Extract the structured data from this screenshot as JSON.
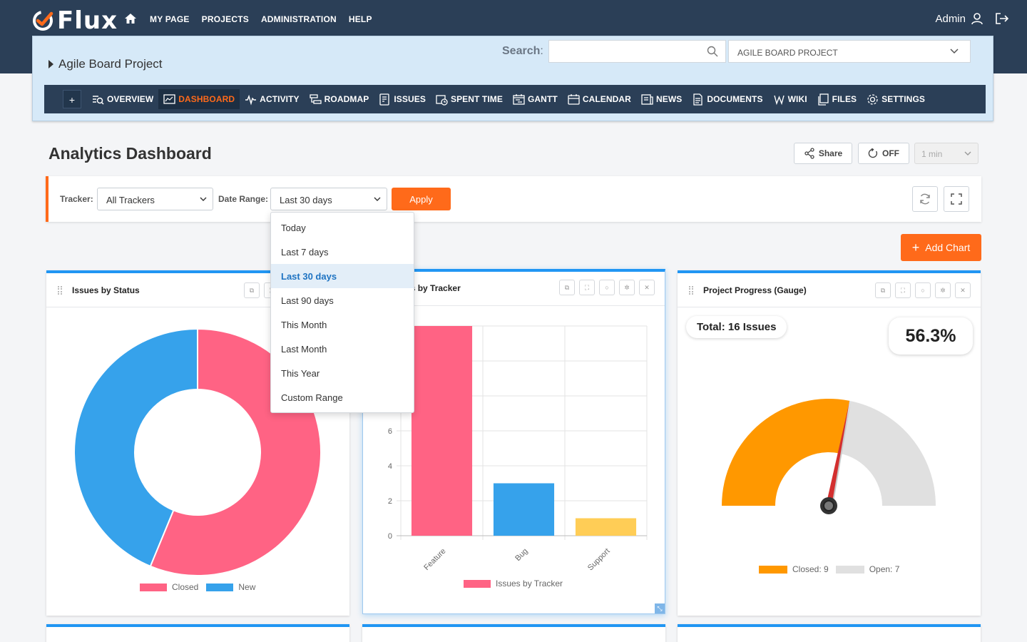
{
  "app": {
    "name": "Flux",
    "user": "Admin"
  },
  "mainnav": [
    "MY PAGE",
    "PROJECTS",
    "ADMINISTRATION",
    "HELP"
  ],
  "project": {
    "title": "Agile Board Project",
    "search_label": "Search",
    "search_placeholder": "",
    "selected": "AGILE BOARD PROJECT"
  },
  "subnav": {
    "plus": "+",
    "items": [
      {
        "label": "OVERVIEW",
        "icon": "overview-icon"
      },
      {
        "label": "DASHBOARD",
        "icon": "dashboard-icon",
        "active": true
      },
      {
        "label": "ACTIVITY",
        "icon": "activity-icon"
      },
      {
        "label": "ROADMAP",
        "icon": "roadmap-icon"
      },
      {
        "label": "ISSUES",
        "icon": "issues-icon"
      },
      {
        "label": "SPENT TIME",
        "icon": "spent-time-icon"
      },
      {
        "label": "GANTT",
        "icon": "gantt-icon"
      },
      {
        "label": "CALENDAR",
        "icon": "calendar-icon"
      },
      {
        "label": "NEWS",
        "icon": "news-icon"
      },
      {
        "label": "DOCUMENTS",
        "icon": "documents-icon"
      },
      {
        "label": "WIKI",
        "icon": "wiki-icon"
      },
      {
        "label": "FILES",
        "icon": "files-icon"
      },
      {
        "label": "SETTINGS",
        "icon": "settings-icon"
      }
    ]
  },
  "dashboard": {
    "title": "Analytics Dashboard",
    "share_label": "Share",
    "refresh_toggle": "OFF",
    "interval": "1 min",
    "add_chart_label": "Add Chart"
  },
  "filters": {
    "tracker_label": "Tracker:",
    "tracker_value": "All Trackers",
    "date_label": "Date Range:",
    "date_value": "Last 30 days",
    "apply_label": "Apply",
    "date_options": [
      "Today",
      "Last 7 days",
      "Last 30 days",
      "Last 90 days",
      "This Month",
      "Last Month",
      "This Year",
      "Custom Range"
    ],
    "date_selected_index": 2
  },
  "cards": {
    "status": {
      "title": "Issues by Status"
    },
    "tracker": {
      "title": "Issues by Tracker"
    },
    "gauge": {
      "title": "Project Progress (Gauge)",
      "total_text": "Total: 16 Issues",
      "percent_text": "56.3%"
    }
  },
  "colors": {
    "accent": "#ff6a1a",
    "navy": "#2b3f57",
    "closed": "#ff6384",
    "new": "#36a2eb",
    "support": "#ffcd56",
    "gauge_closed": "#ff9800",
    "gauge_open": "#e0e0e0"
  },
  "chart_data": [
    {
      "type": "pie",
      "title": "Issues by Status",
      "categories": [
        "Closed",
        "New"
      ],
      "values": [
        9,
        7
      ]
    },
    {
      "type": "bar",
      "title": "Issues by Tracker",
      "categories": [
        "Feature",
        "Bug",
        "Support"
      ],
      "series": [
        {
          "name": "Issues by Tracker",
          "values": [
            12,
            3,
            1
          ]
        }
      ],
      "yticks": [
        "0",
        "2",
        "4",
        "6"
      ],
      "ylim": [
        0,
        12
      ],
      "grid": true
    },
    {
      "type": "pie",
      "title": "Project Progress (Gauge)",
      "categories": [
        "Closed",
        "Open"
      ],
      "values": [
        9,
        7
      ],
      "legend_labels": [
        "Closed: 9",
        "Open: 7"
      ]
    }
  ]
}
